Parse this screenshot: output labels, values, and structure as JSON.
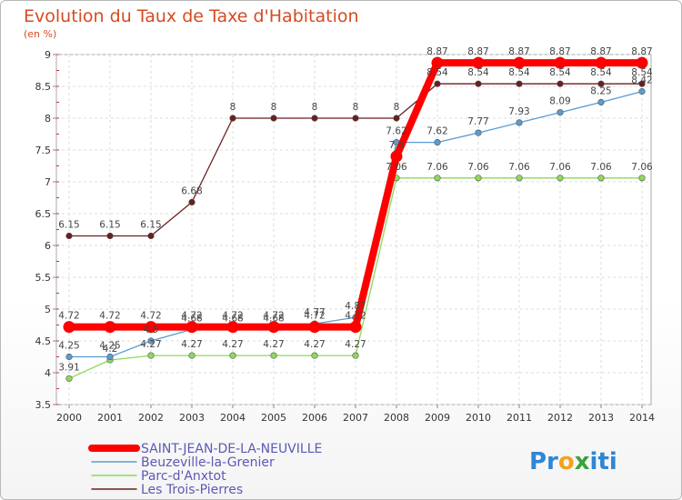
{
  "chart_data": {
    "type": "line",
    "title": "Evolution du Taux de Taxe d'Habitation",
    "ylabel": "(en %)",
    "xlabel": "",
    "ylim": [
      3.5,
      9
    ],
    "yticks": [
      "3.5",
      "4",
      "4.5",
      "5",
      "5.5",
      "6",
      "6.5",
      "7",
      "7.5",
      "8",
      "8.5",
      "9"
    ],
    "categories": [
      "2000",
      "2001",
      "2002",
      "2003",
      "2004",
      "2005",
      "2006",
      "2007",
      "2008",
      "2009",
      "2010",
      "2011",
      "2012",
      "2013",
      "2014"
    ],
    "grid": true,
    "series": [
      {
        "name": "Les Trois-Pierres",
        "color": "#6b1e1e",
        "values": [
          6.15,
          6.15,
          6.15,
          6.68,
          8,
          8,
          8,
          8,
          8,
          8.54,
          8.54,
          8.54,
          8.54,
          8.54,
          8.54
        ],
        "labels": [
          "6.15",
          "6.15",
          "6.15",
          "6.68",
          "8",
          "8",
          "8",
          "8",
          "8",
          "8.54",
          "8.54",
          "8.54",
          "8.54",
          "8.54",
          "8.54"
        ]
      },
      {
        "name": "Parc-d'Anxtot",
        "color": "#8ed85a",
        "values": [
          3.91,
          4.2,
          4.27,
          4.27,
          4.27,
          4.27,
          4.27,
          4.27,
          7.06,
          7.06,
          7.06,
          7.06,
          7.06,
          7.06,
          7.06
        ],
        "labels": [
          "3.91",
          "4.2",
          "4.27",
          "4.27",
          "4.27",
          "4.27",
          "4.27",
          "4.27",
          "7.06",
          "7.06",
          "7.06",
          "7.06",
          "7.06",
          "7.06",
          "7.06"
        ]
      },
      {
        "name": "Beuzeville-la-Grenier",
        "color": "#5a9bd4",
        "values": [
          4.25,
          4.25,
          4.5,
          4.68,
          4.68,
          4.68,
          4.77,
          4.87,
          7.62,
          7.62,
          7.77,
          7.93,
          8.09,
          8.25,
          8.42
        ],
        "labels": [
          "4.25",
          "4.25",
          "4.5",
          "4.68",
          "4.68",
          "4.68",
          "4.77",
          "4.87",
          "7.62",
          "7.62",
          "7.77",
          "7.93",
          "8.09",
          "8.25",
          "8.42"
        ]
      },
      {
        "name": "SAINT-JEAN-DE-LA-NEUVILLE",
        "color": "#ff0000",
        "values": [
          4.72,
          4.72,
          4.72,
          4.72,
          4.72,
          4.72,
          4.72,
          4.72,
          7.4,
          8.87,
          8.87,
          8.87,
          8.87,
          8.87,
          8.87
        ],
        "labels": [
          "4.72",
          "4.72",
          "4.72",
          "4.72",
          "4.72",
          "4.72",
          "4.72",
          "4.72",
          "7.4",
          "8.87",
          "8.87",
          "8.87",
          "8.87",
          "8.87",
          "8.87"
        ]
      }
    ]
  },
  "legend": [
    {
      "name": "SAINT-JEAN-DE-LA-NEUVILLE",
      "color": "#ff0000"
    },
    {
      "name": "Beuzeville-la-Grenier",
      "color": "#5a9bd4"
    },
    {
      "name": "Parc-d'Anxtot",
      "color": "#8ed85a"
    },
    {
      "name": "Les Trois-Pierres",
      "color": "#6b1e1e"
    }
  ],
  "logo": {
    "parts": [
      "Pr",
      "o",
      "x",
      "iti"
    ],
    "colors": [
      "#2e86d4",
      "#f5a21b",
      "#3aa33a",
      "#2e86d4"
    ]
  }
}
